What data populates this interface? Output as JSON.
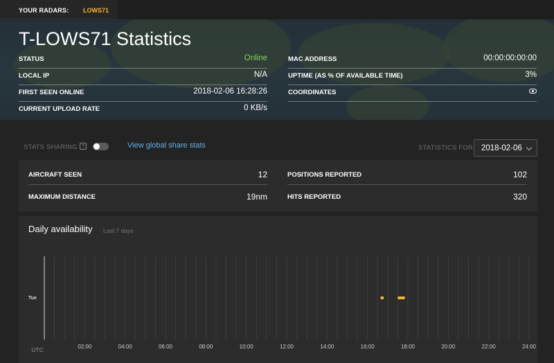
{
  "radar_bar": {
    "label": "YOUR RADARS:",
    "active_radar": "LOWS71"
  },
  "header": {
    "title": "T-LOWS71 Statistics",
    "left": [
      {
        "key": "STATUS",
        "value": "Online"
      },
      {
        "key": "LOCAL IP",
        "value": "N/A"
      },
      {
        "key": "FIRST SEEN ONLINE",
        "value": "2018-02-06 16:28:26"
      },
      {
        "key": "CURRENT UPLOAD RATE",
        "value": "0 KB/s"
      }
    ],
    "right": [
      {
        "key": "MAC ADDRESS",
        "value": "00:00:00:00:00"
      },
      {
        "key": "UPTIME (AS % OF AVAILABLE TIME)",
        "value": "3%"
      },
      {
        "key": "COORDINATES",
        "icon": "eye-icon"
      }
    ],
    "status_color": "#8ad35e"
  },
  "controls": {
    "stats_sharing_label": "STATS SHARING",
    "help_glyph": "?",
    "sharing_enabled": false,
    "global_link": "View global share stats",
    "stats_for_label": "STATISTICS FOR",
    "selected_date": "2018-02-06"
  },
  "stats": {
    "aircraft_seen": {
      "label": "AIRCRAFT SEEN",
      "value": "12"
    },
    "max_distance": {
      "label": "MAXIMUM DISTANCE",
      "value": "19nm"
    },
    "positions_reported": {
      "label": "POSITIONS REPORTED",
      "value": "102"
    },
    "hits_reported": {
      "label": "HITS REPORTED",
      "value": "320"
    }
  },
  "availability": {
    "title": "Daily availability",
    "subtitle": "Last 7 days",
    "timezone_label": "UTC",
    "accent_color": "#f6b62f",
    "chart_data": {
      "type": "timeline",
      "days": [
        "Tue"
      ],
      "x_unit": "hour of day (UTC)",
      "xlim": [
        0,
        24
      ],
      "x_ticks": [
        "02:00",
        "04:00",
        "06:00",
        "08:00",
        "10:00",
        "12:00",
        "14:00",
        "16:00",
        "18:00",
        "20:00",
        "22:00",
        "24:00"
      ],
      "intervals": [
        {
          "day": "Tue",
          "start": 16.65,
          "end": 16.8
        },
        {
          "day": "Tue",
          "start": 17.5,
          "end": 17.85
        }
      ]
    }
  }
}
